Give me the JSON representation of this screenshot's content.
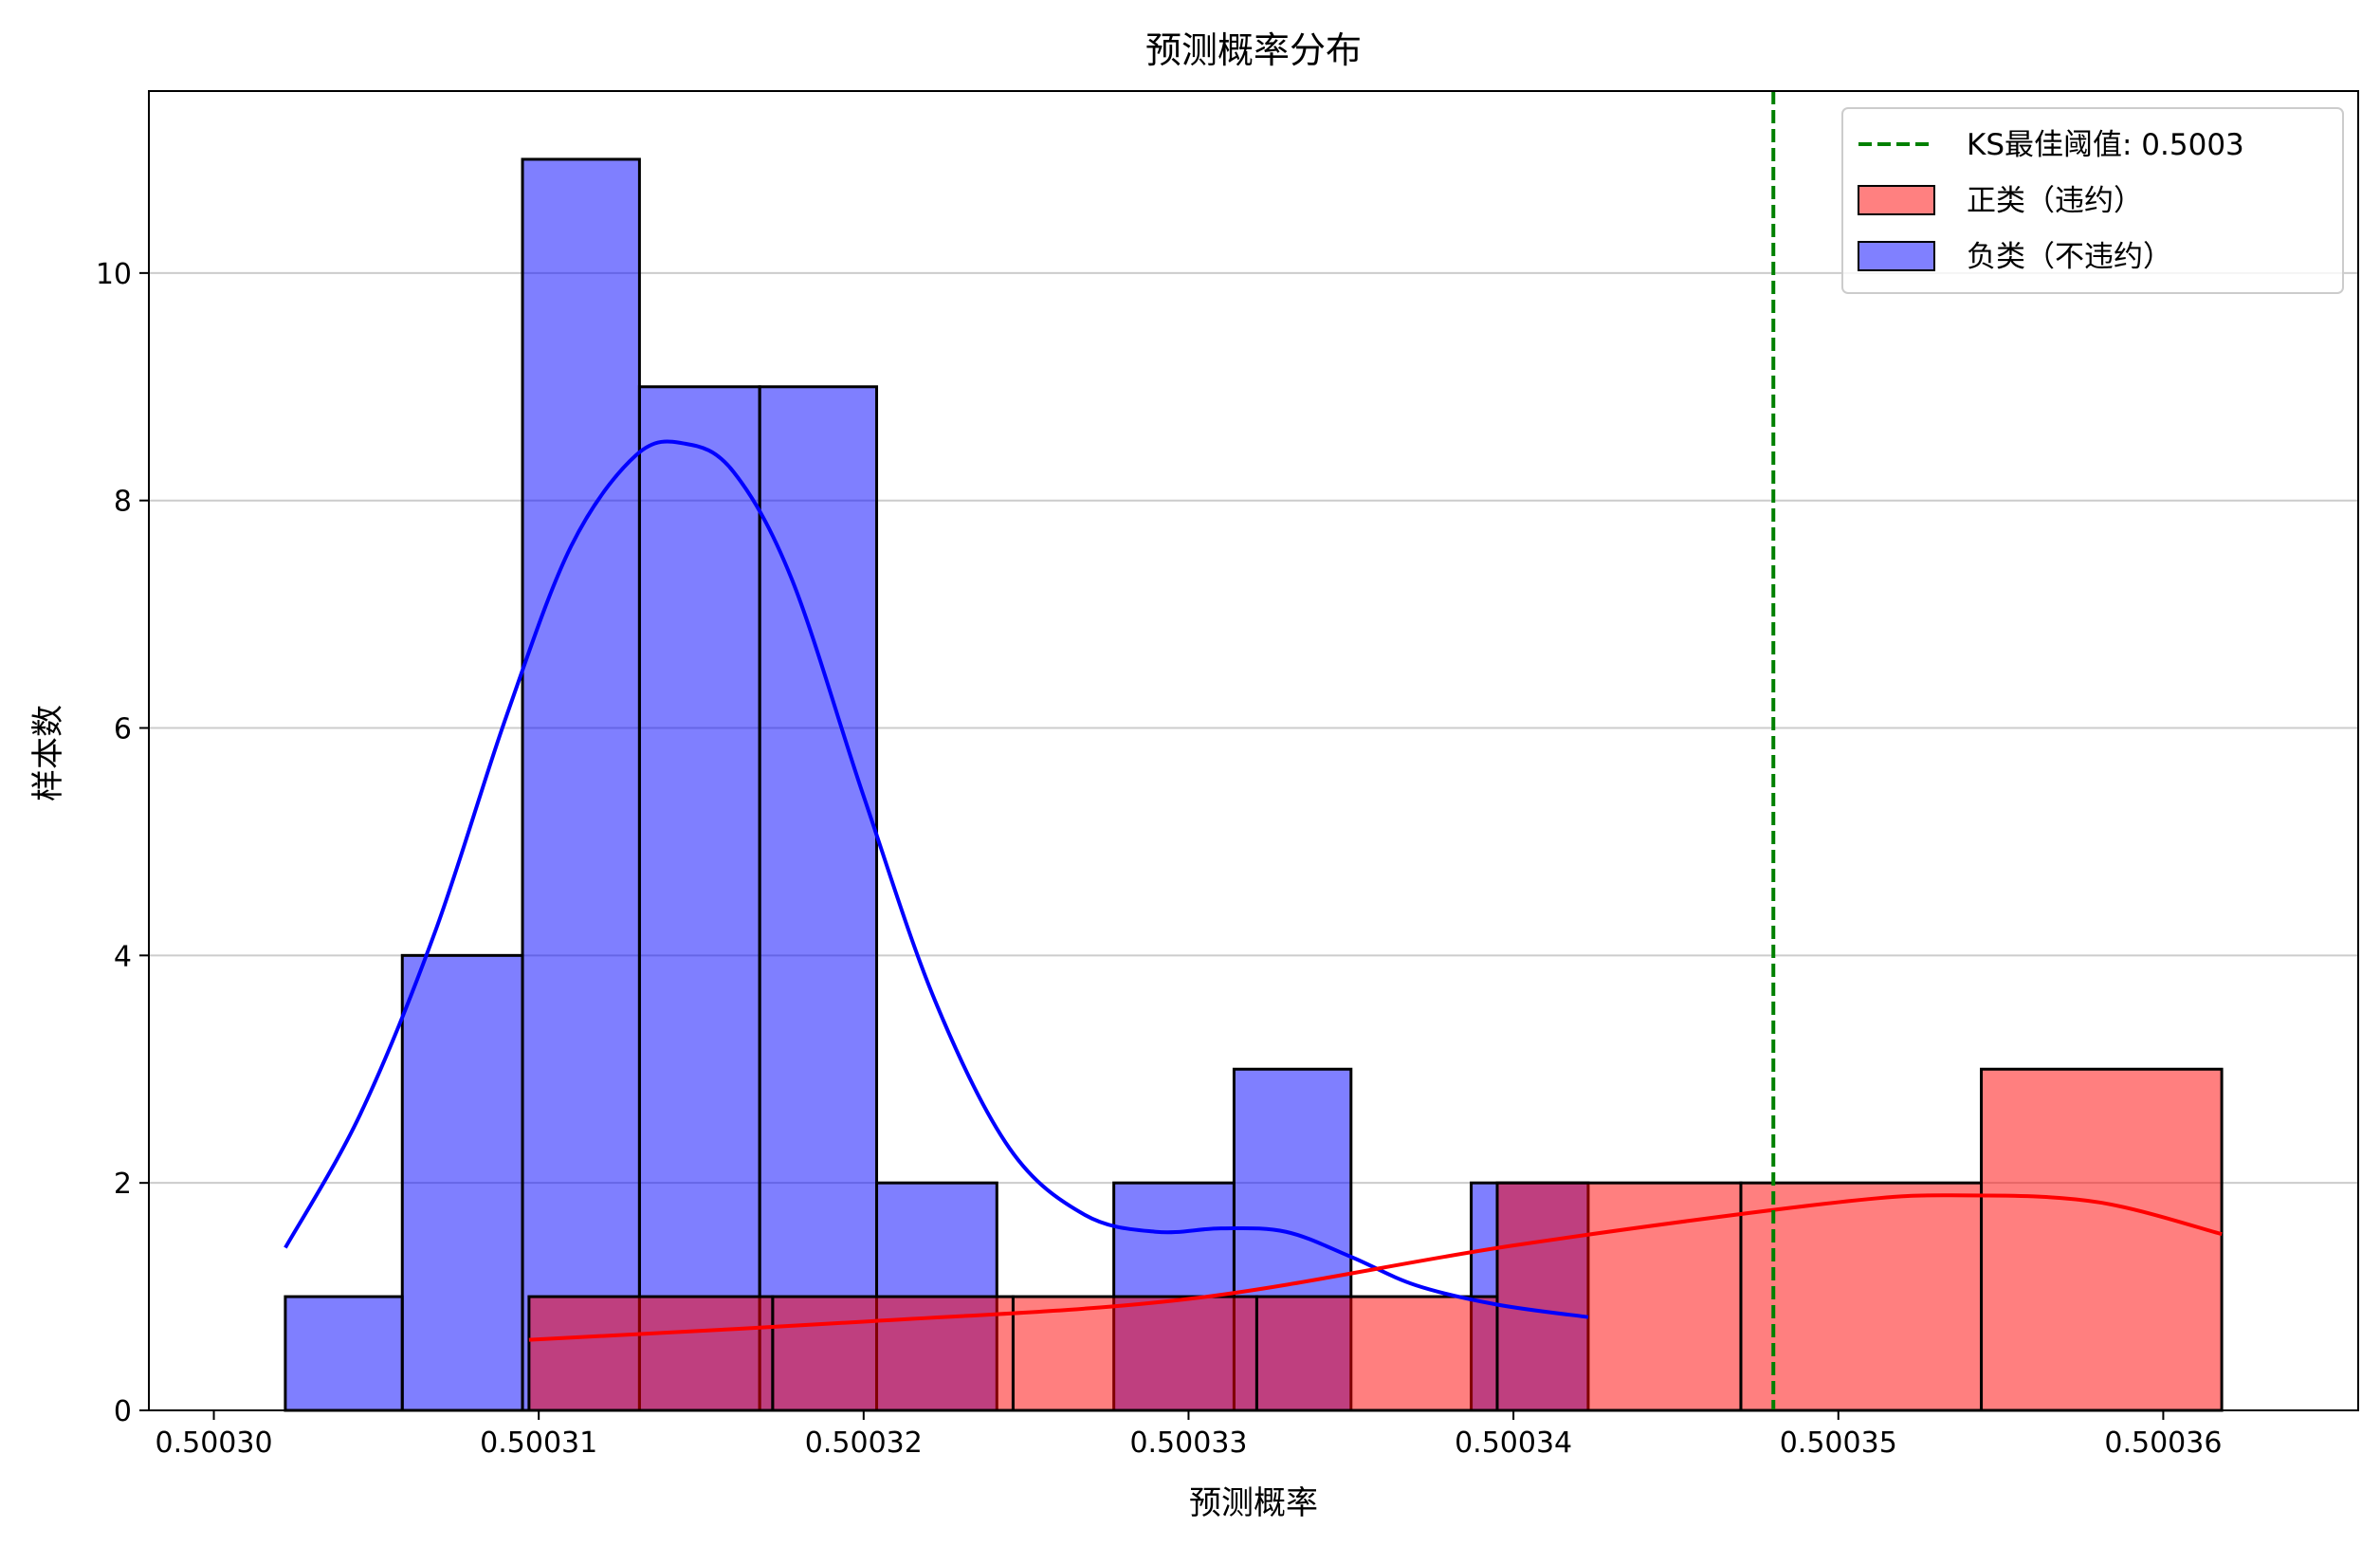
{
  "chart_data": {
    "type": "histogram",
    "title": "预测概率分布",
    "xlabel": "预测概率",
    "ylabel": "样本数",
    "xlim": [
      0.500298,
      0.500366
    ],
    "ylim": [
      0,
      11.6
    ],
    "x_ticks": [
      {
        "value": 0.5003,
        "label": "0.50030"
      },
      {
        "value": 0.50031,
        "label": "0.50031"
      },
      {
        "value": 0.50032,
        "label": "0.50032"
      },
      {
        "value": 0.50033,
        "label": "0.50033"
      },
      {
        "value": 0.50034,
        "label": "0.50034"
      },
      {
        "value": 0.50035,
        "label": "0.50035"
      },
      {
        "value": 0.50036,
        "label": "0.50036"
      }
    ],
    "y_ticks": [
      {
        "value": 0,
        "label": "0"
      },
      {
        "value": 2,
        "label": "2"
      },
      {
        "value": 4,
        "label": "4"
      },
      {
        "value": 6,
        "label": "6"
      },
      {
        "value": 8,
        "label": "8"
      },
      {
        "value": 10,
        "label": "10"
      }
    ],
    "grid": "y",
    "legend_position": "top-right",
    "threshold": {
      "label": "KS最佳阈值: 0.5003",
      "x": 0.500348,
      "color": "#008000",
      "style": "dashed"
    },
    "series": [
      {
        "name": "正类（违约）",
        "color": "#ff8080",
        "line_color": "#ff0000",
        "bins": [
          {
            "x0": 0.5003097,
            "x1": 0.5003172,
            "count": 1
          },
          {
            "x0": 0.5003172,
            "x1": 0.5003246,
            "count": 1
          },
          {
            "x0": 0.5003246,
            "x1": 0.5003321,
            "count": 1
          },
          {
            "x0": 0.5003321,
            "x1": 0.5003395,
            "count": 1
          },
          {
            "x0": 0.5003395,
            "x1": 0.500347,
            "count": 2
          },
          {
            "x0": 0.500347,
            "x1": 0.5003544,
            "count": 2
          },
          {
            "x0": 0.5003544,
            "x1": 0.5003618,
            "count": 3
          }
        ],
        "kde": [
          [
            0.5003097,
            0.62
          ],
          [
            0.50032,
            0.78
          ],
          [
            0.50033,
            0.98
          ],
          [
            0.50034,
            1.45
          ],
          [
            0.50035,
            1.83
          ],
          [
            0.500354,
            1.89
          ],
          [
            0.500358,
            1.83
          ],
          [
            0.5003618,
            1.55
          ]
        ]
      },
      {
        "name": "负类（不违约）",
        "color": "#8080ff",
        "line_color": "#0000ff",
        "bins": [
          {
            "x0": 0.5003022,
            "x1": 0.5003058,
            "count": 1
          },
          {
            "x0": 0.5003058,
            "x1": 0.5003095,
            "count": 4
          },
          {
            "x0": 0.5003095,
            "x1": 0.5003131,
            "count": 11
          },
          {
            "x0": 0.5003131,
            "x1": 0.5003168,
            "count": 9
          },
          {
            "x0": 0.5003168,
            "x1": 0.5003204,
            "count": 9
          },
          {
            "x0": 0.5003204,
            "x1": 0.5003241,
            "count": 2
          },
          {
            "x0": 0.5003241,
            "x1": 0.5003277,
            "count": 0
          },
          {
            "x0": 0.5003277,
            "x1": 0.5003314,
            "count": 2
          },
          {
            "x0": 0.5003314,
            "x1": 0.500335,
            "count": 3
          },
          {
            "x0": 0.500335,
            "x1": 0.5003387,
            "count": 0
          },
          {
            "x0": 0.5003387,
            "x1": 0.5003423,
            "count": 2
          }
        ],
        "kde": [
          [
            0.5003022,
            1.43
          ],
          [
            0.5003045,
            2.6
          ],
          [
            0.5003068,
            4.2
          ],
          [
            0.500309,
            6.1
          ],
          [
            0.500311,
            7.6
          ],
          [
            0.500313,
            8.4
          ],
          [
            0.5003145,
            8.5
          ],
          [
            0.500316,
            8.25
          ],
          [
            0.5003178,
            7.3
          ],
          [
            0.50032,
            5.4
          ],
          [
            0.5003222,
            3.6
          ],
          [
            0.5003245,
            2.3
          ],
          [
            0.5003268,
            1.72
          ],
          [
            0.500329,
            1.57
          ],
          [
            0.500331,
            1.6
          ],
          [
            0.500333,
            1.57
          ],
          [
            0.500335,
            1.35
          ],
          [
            0.500337,
            1.1
          ],
          [
            0.5003395,
            0.93
          ],
          [
            0.5003423,
            0.82
          ]
        ]
      }
    ]
  }
}
